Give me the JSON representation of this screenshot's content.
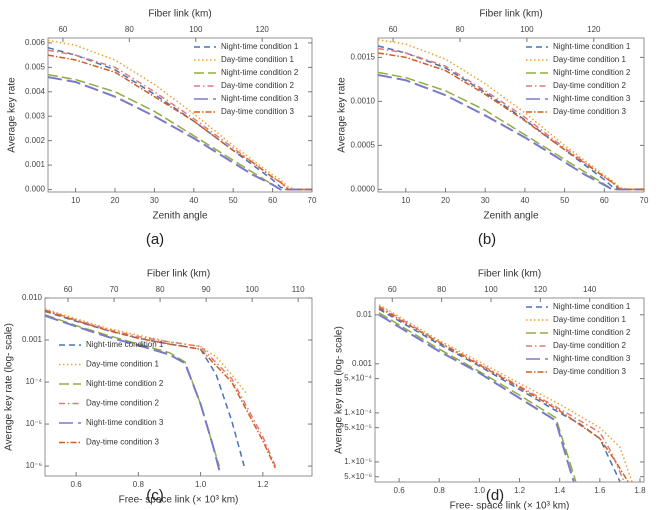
{
  "chart_data": [
    {
      "type": "line",
      "panel_label": "(a)",
      "xlabel": "Zenith angle",
      "x2label": "Fiber link (km)",
      "ylabel": "Average key rate",
      "legend": "upper right",
      "xlim": [
        3,
        70
      ],
      "xticks": [
        10,
        20,
        30,
        40,
        50,
        60,
        70
      ],
      "x2lim": [
        55.5,
        135
      ],
      "x2ticks": [
        60,
        80,
        100,
        120
      ],
      "ylim": [
        -0.0001,
        0.0062
      ],
      "yticks": [
        {
          "value": 0,
          "label": "0.000"
        },
        0.001,
        0.002,
        0.003,
        0.004,
        0.005,
        0.006
      ],
      "x": [
        3,
        10,
        20,
        30,
        40,
        50,
        55,
        60,
        62,
        64,
        66,
        70
      ],
      "series": [
        {
          "name": "Night-time condition 1",
          "color": "#4a72b8",
          "dash": "6,4",
          "values": [
            0.0058,
            0.0055,
            0.0049,
            0.0039,
            0.0028,
            0.0016,
            0.001,
            0.0004,
            0.0001,
            0,
            0,
            0
          ]
        },
        {
          "name": "Day-time condition 1",
          "color": "#f0a030",
          "dash": "1.5,2.5",
          "values": [
            0.0061,
            0.0059,
            0.0053,
            0.0043,
            0.0031,
            0.0018,
            0.0012,
            0.0006,
            0.0004,
            0.0001,
            0,
            0
          ]
        },
        {
          "name": "Night-time condition 2",
          "color": "#8fad3f",
          "dash": "10,4",
          "values": [
            0.0047,
            0.0045,
            0.004,
            0.0032,
            0.0022,
            0.0012,
            0.0007,
            0.0002,
            0,
            0,
            0,
            0
          ]
        },
        {
          "name": "Day-time condition 2",
          "color": "#e07a7a",
          "dash": "6,3,1.5,3",
          "values": [
            0.0057,
            0.0055,
            0.005,
            0.004,
            0.0029,
            0.0017,
            0.0011,
            0.0005,
            0.0003,
            0,
            0,
            0
          ]
        },
        {
          "name": "Night-time condition 3",
          "color": "#7a7ac8",
          "dash": "14,5",
          "values": [
            0.0046,
            0.0044,
            0.0038,
            0.003,
            0.0021,
            0.0011,
            0.0006,
            0.0002,
            0,
            0,
            0,
            0
          ]
        },
        {
          "name": "Day-time condition 3",
          "color": "#d35f1f",
          "dash": "6,2,1.5,2",
          "values": [
            0.0055,
            0.0053,
            0.0048,
            0.0038,
            0.0028,
            0.0016,
            0.0011,
            0.0005,
            0.0003,
            0,
            0,
            0
          ]
        }
      ]
    },
    {
      "type": "line",
      "panel_label": "(b)",
      "xlabel": "Zenith angle",
      "x2label": "Fiber link (km)",
      "ylabel": "Average key rate",
      "legend": "upper right",
      "xlim": [
        3,
        70
      ],
      "xticks": [
        10,
        20,
        30,
        40,
        50,
        60,
        70
      ],
      "x2lim": [
        55.5,
        135
      ],
      "x2ticks": [
        60,
        80,
        100,
        120
      ],
      "ylim": [
        -3e-05,
        0.00172
      ],
      "yticks": [
        {
          "value": 0,
          "label": "0.0000"
        },
        0.0005,
        {
          "value": 0.001,
          "label": "0.0010"
        },
        0.0015
      ],
      "x": [
        3,
        10,
        20,
        30,
        40,
        50,
        55,
        60,
        62,
        64,
        66,
        70
      ],
      "series": [
        {
          "name": "Night-time condition 1",
          "color": "#4a72b8",
          "dash": "6,4",
          "values": [
            0.00163,
            0.00155,
            0.00138,
            0.0011,
            0.00079,
            0.00045,
            0.00028,
            0.00011,
            3e-05,
            0,
            0,
            0
          ]
        },
        {
          "name": "Day-time condition 1",
          "color": "#f0a030",
          "dash": "1.5,2.5",
          "values": [
            0.0017,
            0.00165,
            0.00148,
            0.0012,
            0.00087,
            0.0005,
            0.00033,
            0.00016,
            0.0001,
            2e-05,
            0,
            0
          ]
        },
        {
          "name": "Night-time condition 2",
          "color": "#8fad3f",
          "dash": "10,4",
          "values": [
            0.00133,
            0.00127,
            0.00112,
            0.0009,
            0.00062,
            0.00034,
            0.0002,
            6e-05,
            0,
            0,
            0,
            0
          ]
        },
        {
          "name": "Day-time condition 2",
          "color": "#e07a7a",
          "dash": "6,3,1.5,3",
          "values": [
            0.0016,
            0.00155,
            0.0014,
            0.00112,
            0.00082,
            0.00047,
            0.00031,
            0.00014,
            8e-05,
            0,
            0,
            0
          ]
        },
        {
          "name": "Night-time condition 3",
          "color": "#7a7ac8",
          "dash": "14,5",
          "values": [
            0.0013,
            0.00124,
            0.00107,
            0.00084,
            0.00059,
            0.00031,
            0.00017,
            5e-05,
            0,
            0,
            0,
            0
          ]
        },
        {
          "name": "Day-time condition 3",
          "color": "#d35f1f",
          "dash": "6,2,1.5,2",
          "values": [
            0.00155,
            0.0015,
            0.00135,
            0.00108,
            0.00078,
            0.00045,
            0.0003,
            0.00014,
            8e-05,
            0,
            0,
            0
          ]
        }
      ]
    },
    {
      "type": "line",
      "panel_label": "(c)",
      "xlabel": "Free- space link (× 10³ km)",
      "x2label": "Fiber link (km)",
      "ylabel": "Average key rate (log- scale)",
      "legend": "lower left",
      "ylog": true,
      "xlim": [
        0.5,
        1.358
      ],
      "xticks": [
        0.6,
        0.8,
        {
          "value": 1,
          "label": "1.0"
        },
        1.2
      ],
      "x2lim": [
        55,
        113
      ],
      "x2ticks": [
        60,
        70,
        80,
        90,
        100,
        110
      ],
      "ylim": [
        5.8e-07,
        0.01
      ],
      "yticks": [
        {
          "value": 1e-06,
          "label": "10⁻⁶"
        },
        {
          "value": 1e-05,
          "label": "10⁻⁵"
        },
        {
          "value": 0.0001,
          "label": "10⁻⁴"
        },
        0.001,
        {
          "value": 0.01,
          "label": "0.010"
        }
      ],
      "series": [
        {
          "name": "Night-time condition 1",
          "color": "#4a72b8",
          "dash": "6,4",
          "x": [
            0.5,
            0.6,
            0.7,
            0.8,
            0.9,
            0.95,
            1,
            1.05,
            1.1,
            1.14
          ],
          "values": [
            0.0048,
            0.0028,
            0.0017,
            0.0011,
            0.0008,
            0.0007,
            0.0006,
            0.00015,
            1.2e-05,
            1e-06
          ]
        },
        {
          "name": "Day-time condition 1",
          "color": "#f0a030",
          "dash": "1.5,2.5",
          "x": [
            0.5,
            0.6,
            0.7,
            0.8,
            0.9,
            0.95,
            1,
            1.05,
            1.1,
            1.15
          ],
          "values": [
            0.0055,
            0.0032,
            0.0019,
            0.0013,
            0.0009,
            0.0008,
            0.0007,
            0.0004,
            0.00015,
            5e-05
          ]
        },
        {
          "name": "Night-time condition 2",
          "color": "#8fad3f",
          "dash": "10,4",
          "x": [
            0.5,
            0.6,
            0.7,
            0.8,
            0.9,
            0.95,
            1,
            1.04,
            1.06
          ],
          "values": [
            0.004,
            0.0022,
            0.0013,
            0.0008,
            0.0005,
            0.0003,
            3e-05,
            3e-06,
            1e-06
          ]
        },
        {
          "name": "Day-time condition 2",
          "color": "#e07a7a",
          "dash": "6,3,1.5,3",
          "x": [
            0.5,
            0.6,
            0.7,
            0.8,
            0.9,
            0.95,
            1,
            1.1,
            1.2,
            1.24
          ],
          "values": [
            0.0052,
            0.003,
            0.0018,
            0.0012,
            0.0009,
            0.0008,
            0.0007,
            0.00012,
            5e-06,
            1e-06
          ]
        },
        {
          "name": "Night-time condition 3",
          "color": "#7a7ac8",
          "dash": "14,5",
          "x": [
            0.5,
            0.6,
            0.7,
            0.8,
            0.9,
            0.95,
            1,
            1.04,
            1.06
          ],
          "values": [
            0.0038,
            0.0021,
            0.0012,
            0.00075,
            0.00045,
            0.00028,
            3e-05,
            3e-06,
            8e-07
          ]
        },
        {
          "name": "Day-time condition 3",
          "color": "#d35f1f",
          "dash": "6,2,1.5,2",
          "x": [
            0.5,
            0.6,
            0.7,
            0.8,
            0.9,
            0.95,
            1,
            1.1,
            1.2,
            1.24
          ],
          "values": [
            0.005,
            0.0029,
            0.0017,
            0.0011,
            0.0008,
            0.0007,
            0.0006,
            0.0001,
            4e-06,
            9e-07
          ]
        }
      ]
    },
    {
      "type": "line",
      "panel_label": "(d)",
      "xlabel": "Free- space link (× 10³ km)",
      "x2label": "Fiber link (km)",
      "ylabel": "Average key rate (log- scale)",
      "legend": "upper right",
      "ylog": true,
      "xlim": [
        0.48,
        1.82
      ],
      "xticks": [
        0.6,
        0.8,
        {
          "value": 1,
          "label": "1.0"
        },
        1.2,
        1.4,
        1.6,
        1.8
      ],
      "x2lim": [
        53,
        162
      ],
      "x2ticks": [
        60,
        80,
        100,
        120,
        140
      ],
      "ylim": [
        3.9e-06,
        0.022
      ],
      "yticks": [
        {
          "value": 5e-06,
          "label": "5.×10⁻⁶"
        },
        {
          "value": 1e-05,
          "label": "1.×10⁻⁵"
        },
        {
          "value": 5e-05,
          "label": "5.×10⁻⁵"
        },
        {
          "value": 0.0001,
          "label": "1.×10⁻⁴"
        },
        {
          "value": 0.0005,
          "label": "5.×10⁻⁴"
        },
        0.001,
        0.01
      ],
      "series": [
        {
          "name": "Night-time condition 1",
          "color": "#4a72b8",
          "dash": "6,4",
          "x": [
            0.5,
            0.8,
            1,
            1.2,
            1.4,
            1.5,
            1.6,
            1.7
          ],
          "values": [
            0.013,
            0.0025,
            0.0009,
            0.0003,
            0.0001,
            6e-05,
            3e-05,
            4e-06
          ]
        },
        {
          "name": "Day-time condition 1",
          "color": "#f0a030",
          "dash": "1.5,2.5",
          "x": [
            0.5,
            0.8,
            1,
            1.2,
            1.4,
            1.6,
            1.7,
            1.76
          ],
          "values": [
            0.016,
            0.003,
            0.0011,
            0.0004,
            0.00015,
            5e-05,
            2e-05,
            4e-06
          ]
        },
        {
          "name": "Night-time condition 2",
          "color": "#8fad3f",
          "dash": "10,4",
          "x": [
            0.5,
            0.8,
            1,
            1.2,
            1.38,
            1.45,
            1.48
          ],
          "values": [
            0.011,
            0.002,
            0.0007,
            0.00023,
            8e-05,
            1e-05,
            4e-06
          ]
        },
        {
          "name": "Day-time condition 2",
          "color": "#e07a7a",
          "dash": "6,3,1.5,3",
          "x": [
            0.5,
            0.8,
            1,
            1.2,
            1.4,
            1.6,
            1.66,
            1.72
          ],
          "values": [
            0.015,
            0.0028,
            0.001,
            0.00035,
            0.00012,
            4e-05,
            1.5e-05,
            4e-06
          ]
        },
        {
          "name": "Night-time condition 3",
          "color": "#7a7ac8",
          "dash": "14,5",
          "x": [
            0.5,
            0.8,
            1,
            1.2,
            1.38,
            1.44,
            1.47
          ],
          "values": [
            0.01,
            0.0018,
            0.00065,
            0.0002,
            7e-05,
            1e-05,
            4e-06
          ]
        },
        {
          "name": "Day-time condition 3",
          "color": "#d35f1f",
          "dash": "6,2,1.5,2",
          "x": [
            0.5,
            0.8,
            1,
            1.2,
            1.4,
            1.6,
            1.68,
            1.74
          ],
          "values": [
            0.014,
            0.0027,
            0.00095,
            0.00033,
            0.00011,
            3e-05,
            1e-05,
            4e-06
          ]
        }
      ]
    }
  ]
}
